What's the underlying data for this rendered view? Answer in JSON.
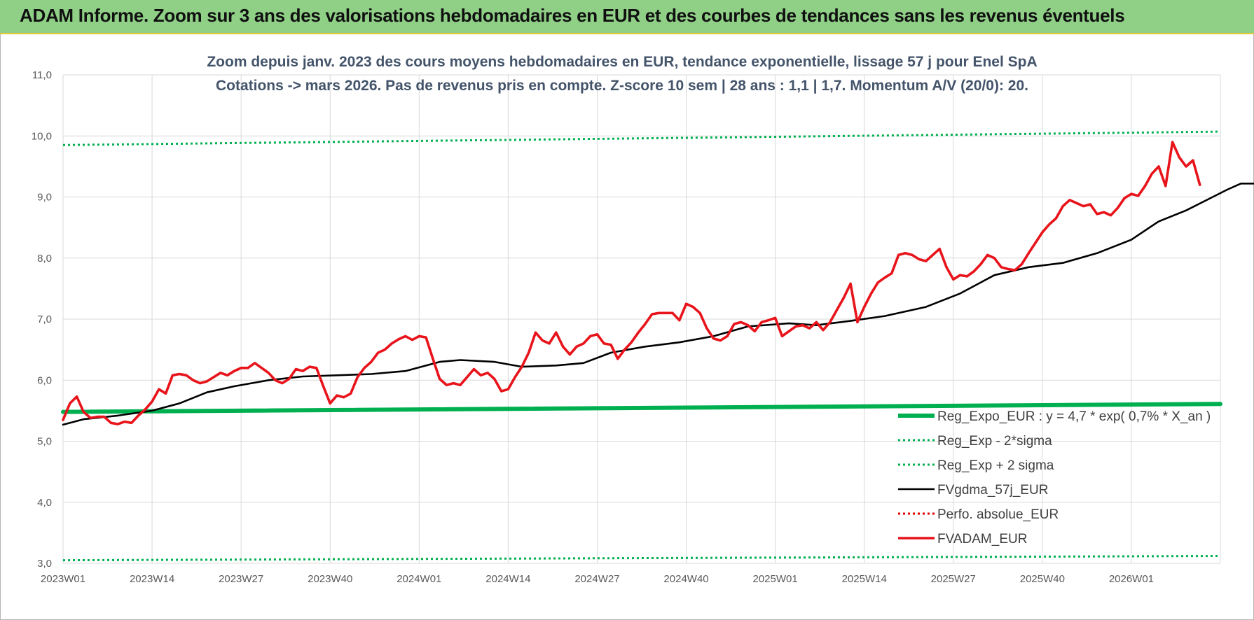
{
  "banner": {
    "title": "ADAM Informe. Zoom sur 3 ans des valorisations hebdomadaires en EUR et des courbes de tendances sans les revenus éventuels"
  },
  "colors": {
    "banner_bg": "#8fcf86",
    "regression": "#00b050",
    "sigma_bands": "#00b050",
    "moving_average": "#000000",
    "perf_absolue": "#e00000",
    "fvadam": "#e8141b"
  },
  "chart_data": {
    "type": "line",
    "title": "Zoom depuis janv. 2023 des cours moyens hebdomadaires en EUR, tendance exponentielle, lissage 57 j pour Enel SpA",
    "subtitle": "Cotations -> mars 2026. Pas de revenus pris en compte. Z-score 10 sem | 28 ans : 1,1 | 1,7. Momentum A/V (20/0): 20.",
    "ylim": [
      3.0,
      11.0
    ],
    "y_ticks": [
      "3,0",
      "4,0",
      "5,0",
      "6,0",
      "7,0",
      "8,0",
      "9,0",
      "10,0",
      "11,0"
    ],
    "x_ticks": [
      "2023W01",
      "2023W14",
      "2023W27",
      "2023W40",
      "2024W01",
      "2024W14",
      "2024W27",
      "2024W40",
      "2025W01",
      "2025W14",
      "2025W27",
      "2025W40",
      "2026W01"
    ],
    "week_count": 170,
    "grid": true,
    "legend_position": "bottom-right",
    "series": [
      {
        "name": "Reg_Expo_EUR : y = 4,7 * exp( 0,7% *  X_an )",
        "style": "solid-thick",
        "color": "#00b050",
        "points": [
          [
            0,
            5.48
          ],
          [
            169,
            5.61
          ]
        ]
      },
      {
        "name": "Reg_Exp - 2*sigma",
        "style": "dotted",
        "color": "#00b050",
        "points": [
          [
            0,
            3.05
          ],
          [
            169,
            3.12
          ]
        ]
      },
      {
        "name": "Reg_Exp + 2 sigma",
        "style": "dotted",
        "color": "#00b050",
        "points": [
          [
            0,
            9.85
          ],
          [
            169,
            10.07
          ]
        ]
      },
      {
        "name": "FVgdma_57j_EUR",
        "style": "solid",
        "color": "#000000",
        "points": [
          [
            0,
            5.27
          ],
          [
            3,
            5.36
          ],
          [
            8,
            5.42
          ],
          [
            13,
            5.5
          ],
          [
            17,
            5.62
          ],
          [
            21,
            5.8
          ],
          [
            25,
            5.9
          ],
          [
            30,
            6.0
          ],
          [
            35,
            6.06
          ],
          [
            40,
            6.08
          ],
          [
            45,
            6.1
          ],
          [
            50,
            6.15
          ],
          [
            55,
            6.3
          ],
          [
            58,
            6.33
          ],
          [
            63,
            6.3
          ],
          [
            67,
            6.22
          ],
          [
            72,
            6.24
          ],
          [
            76,
            6.28
          ],
          [
            80,
            6.45
          ],
          [
            85,
            6.55
          ],
          [
            90,
            6.62
          ],
          [
            95,
            6.72
          ],
          [
            100,
            6.88
          ],
          [
            106,
            6.93
          ],
          [
            110,
            6.9
          ],
          [
            115,
            6.97
          ],
          [
            120,
            7.05
          ],
          [
            126,
            7.2
          ],
          [
            131,
            7.42
          ],
          [
            136,
            7.72
          ],
          [
            141,
            7.85
          ],
          [
            146,
            7.92
          ],
          [
            151,
            8.08
          ],
          [
            156,
            8.3
          ],
          [
            160,
            8.6
          ],
          [
            164,
            8.78
          ],
          [
            167,
            8.95
          ],
          [
            170,
            9.12
          ],
          [
            172,
            9.22
          ],
          [
            176,
            9.22
          ],
          [
            177,
            9.2
          ]
        ]
      },
      {
        "name": "Perfo. absolue_EUR",
        "style": "dotted",
        "color": "#e00000",
        "points": []
      },
      {
        "name": "FVADAM_EUR",
        "style": "solid-thick",
        "color": "#e8141b",
        "points": [
          [
            0,
            5.35
          ],
          [
            1,
            5.62
          ],
          [
            2,
            5.73
          ],
          [
            3,
            5.48
          ],
          [
            4,
            5.38
          ],
          [
            5,
            5.4
          ],
          [
            6,
            5.4
          ],
          [
            7,
            5.3
          ],
          [
            8,
            5.28
          ],
          [
            9,
            5.32
          ],
          [
            10,
            5.3
          ],
          [
            11,
            5.42
          ],
          [
            12,
            5.52
          ],
          [
            13,
            5.65
          ],
          [
            14,
            5.85
          ],
          [
            15,
            5.78
          ],
          [
            16,
            6.08
          ],
          [
            17,
            6.1
          ],
          [
            18,
            6.08
          ],
          [
            19,
            6.0
          ],
          [
            20,
            5.95
          ],
          [
            21,
            5.98
          ],
          [
            22,
            6.05
          ],
          [
            23,
            6.12
          ],
          [
            24,
            6.08
          ],
          [
            25,
            6.15
          ],
          [
            26,
            6.2
          ],
          [
            27,
            6.2
          ],
          [
            28,
            6.28
          ],
          [
            29,
            6.2
          ],
          [
            30,
            6.12
          ],
          [
            31,
            6.0
          ],
          [
            32,
            5.95
          ],
          [
            33,
            6.02
          ],
          [
            34,
            6.18
          ],
          [
            35,
            6.15
          ],
          [
            36,
            6.22
          ],
          [
            37,
            6.2
          ],
          [
            38,
            5.9
          ],
          [
            39,
            5.62
          ],
          [
            40,
            5.75
          ],
          [
            41,
            5.72
          ],
          [
            42,
            5.78
          ],
          [
            43,
            6.05
          ],
          [
            44,
            6.2
          ],
          [
            45,
            6.3
          ],
          [
            46,
            6.45
          ],
          [
            47,
            6.5
          ],
          [
            48,
            6.6
          ],
          [
            49,
            6.67
          ],
          [
            50,
            6.72
          ],
          [
            51,
            6.66
          ],
          [
            52,
            6.72
          ],
          [
            53,
            6.7
          ],
          [
            54,
            6.35
          ],
          [
            55,
            6.02
          ],
          [
            56,
            5.92
          ],
          [
            57,
            5.95
          ],
          [
            58,
            5.92
          ],
          [
            59,
            6.05
          ],
          [
            60,
            6.18
          ],
          [
            61,
            6.08
          ],
          [
            62,
            6.12
          ],
          [
            63,
            6.02
          ],
          [
            64,
            5.82
          ],
          [
            65,
            5.85
          ],
          [
            66,
            6.05
          ],
          [
            67,
            6.22
          ],
          [
            68,
            6.45
          ],
          [
            69,
            6.78
          ],
          [
            70,
            6.65
          ],
          [
            71,
            6.6
          ],
          [
            72,
            6.78
          ],
          [
            73,
            6.55
          ],
          [
            74,
            6.42
          ],
          [
            75,
            6.55
          ],
          [
            76,
            6.6
          ],
          [
            77,
            6.72
          ],
          [
            78,
            6.75
          ],
          [
            79,
            6.6
          ],
          [
            80,
            6.58
          ],
          [
            81,
            6.35
          ],
          [
            82,
            6.5
          ],
          [
            83,
            6.62
          ],
          [
            84,
            6.78
          ],
          [
            85,
            6.92
          ],
          [
            86,
            7.08
          ],
          [
            87,
            7.1
          ],
          [
            88,
            7.1
          ],
          [
            89,
            7.1
          ],
          [
            90,
            6.98
          ],
          [
            91,
            7.25
          ],
          [
            92,
            7.2
          ],
          [
            93,
            7.1
          ],
          [
            94,
            6.85
          ],
          [
            95,
            6.68
          ],
          [
            96,
            6.65
          ],
          [
            97,
            6.72
          ],
          [
            98,
            6.92
          ],
          [
            99,
            6.95
          ],
          [
            100,
            6.9
          ],
          [
            101,
            6.8
          ],
          [
            102,
            6.95
          ],
          [
            103,
            6.98
          ],
          [
            104,
            7.02
          ],
          [
            105,
            6.72
          ],
          [
            106,
            6.8
          ],
          [
            107,
            6.88
          ],
          [
            108,
            6.9
          ],
          [
            109,
            6.85
          ],
          [
            110,
            6.95
          ],
          [
            111,
            6.82
          ],
          [
            112,
            6.95
          ],
          [
            113,
            7.15
          ],
          [
            114,
            7.35
          ],
          [
            115,
            7.58
          ],
          [
            116,
            6.95
          ],
          [
            117,
            7.2
          ],
          [
            118,
            7.42
          ],
          [
            119,
            7.6
          ],
          [
            120,
            7.68
          ],
          [
            121,
            7.75
          ],
          [
            122,
            8.05
          ],
          [
            123,
            8.08
          ],
          [
            124,
            8.05
          ],
          [
            125,
            7.98
          ],
          [
            126,
            7.95
          ],
          [
            127,
            8.05
          ],
          [
            128,
            8.15
          ],
          [
            129,
            7.85
          ],
          [
            130,
            7.65
          ],
          [
            131,
            7.72
          ],
          [
            132,
            7.7
          ],
          [
            133,
            7.78
          ],
          [
            134,
            7.9
          ],
          [
            135,
            8.05
          ],
          [
            136,
            8.0
          ],
          [
            137,
            7.85
          ],
          [
            138,
            7.82
          ],
          [
            139,
            7.8
          ],
          [
            140,
            7.9
          ],
          [
            141,
            8.08
          ],
          [
            142,
            8.25
          ],
          [
            143,
            8.42
          ],
          [
            144,
            8.55
          ],
          [
            145,
            8.65
          ],
          [
            146,
            8.85
          ],
          [
            147,
            8.95
          ],
          [
            148,
            8.9
          ],
          [
            149,
            8.85
          ],
          [
            150,
            8.88
          ],
          [
            151,
            8.72
          ],
          [
            152,
            8.75
          ],
          [
            153,
            8.7
          ],
          [
            154,
            8.82
          ],
          [
            155,
            8.98
          ],
          [
            156,
            9.05
          ],
          [
            157,
            9.02
          ],
          [
            158,
            9.18
          ],
          [
            159,
            9.38
          ],
          [
            160,
            9.5
          ],
          [
            161,
            9.18
          ],
          [
            162,
            9.9
          ],
          [
            163,
            9.65
          ],
          [
            164,
            9.5
          ],
          [
            165,
            9.6
          ],
          [
            166,
            9.2
          ]
        ]
      }
    ]
  }
}
